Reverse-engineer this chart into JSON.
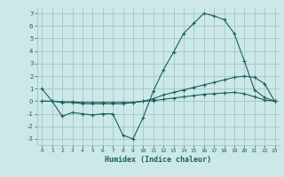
{
  "xlabel": "Humidex (Indice chaleur)",
  "bg_color": "#cce8e8",
  "grid_color": "#aacaca",
  "line_color": "#1a5f5f",
  "series": {
    "line1": {
      "x": [
        0,
        1,
        2,
        3,
        4,
        5,
        6,
        7,
        8,
        9,
        10,
        11,
        12,
        13,
        14,
        15,
        16,
        17,
        18,
        19,
        20,
        21,
        22,
        23
      ],
      "y": [
        1.0,
        0.0,
        -1.2,
        -0.9,
        -1.0,
        -1.1,
        -1.0,
        -1.0,
        -2.7,
        -3.0,
        -1.3,
        0.8,
        2.5,
        3.9,
        5.4,
        6.2,
        7.0,
        6.8,
        6.5,
        5.4,
        3.2,
        0.9,
        0.3,
        0.0
      ]
    },
    "line2": {
      "x": [
        0,
        1,
        2,
        3,
        4,
        5,
        6,
        7,
        8,
        9,
        10,
        11,
        12,
        13,
        14,
        15,
        16,
        17,
        18,
        19,
        20,
        21,
        22,
        23
      ],
      "y": [
        0.0,
        0.0,
        -0.1,
        -0.1,
        -0.2,
        -0.2,
        -0.2,
        -0.2,
        -0.2,
        -0.1,
        0.0,
        0.2,
        0.5,
        0.7,
        0.9,
        1.1,
        1.3,
        1.5,
        1.7,
        1.9,
        2.0,
        1.9,
        1.4,
        0.0
      ]
    },
    "line3": {
      "x": [
        0,
        1,
        2,
        3,
        4,
        5,
        6,
        7,
        8,
        9,
        10,
        11,
        12,
        13,
        14,
        15,
        16,
        17,
        18,
        19,
        20,
        21,
        22,
        23
      ],
      "y": [
        0.0,
        0.0,
        -0.05,
        -0.05,
        -0.1,
        -0.1,
        -0.1,
        -0.1,
        -0.1,
        -0.1,
        0.0,
        0.05,
        0.15,
        0.25,
        0.35,
        0.45,
        0.55,
        0.6,
        0.65,
        0.7,
        0.6,
        0.35,
        0.1,
        0.0
      ]
    }
  },
  "xlim": [
    0,
    23
  ],
  "ylim": [
    -3.5,
    7.5
  ],
  "yticks": [
    -3,
    -2,
    -1,
    0,
    1,
    2,
    3,
    4,
    5,
    6,
    7
  ],
  "xticks": [
    0,
    1,
    2,
    3,
    4,
    5,
    6,
    7,
    8,
    9,
    10,
    11,
    12,
    13,
    14,
    15,
    16,
    17,
    18,
    19,
    20,
    21,
    22,
    23
  ]
}
